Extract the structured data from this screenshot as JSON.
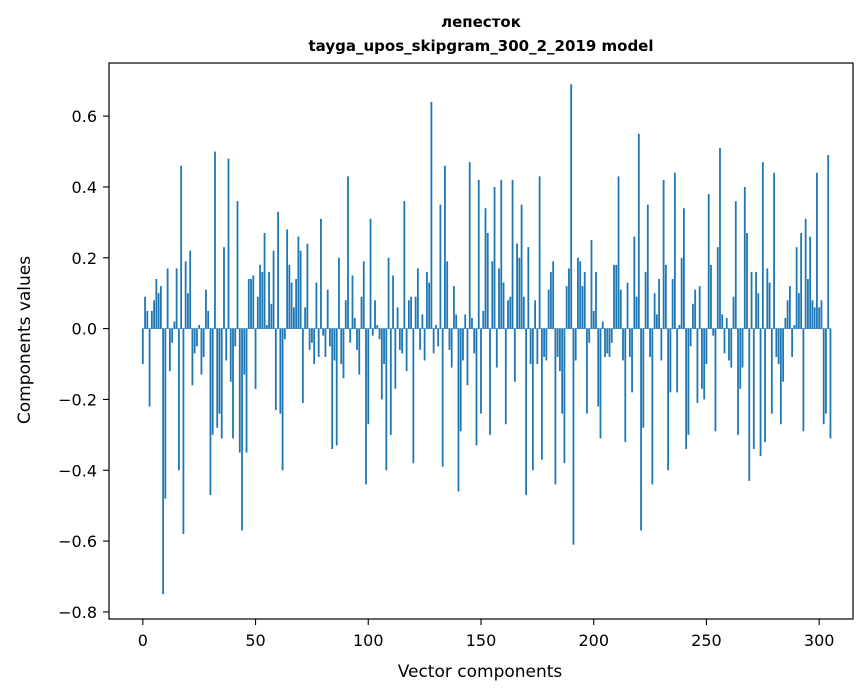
{
  "chart_data": {
    "type": "bar",
    "title": "лепесток",
    "subtitle": "tayga_upos_skipgram_300_2_2019 model",
    "xlabel": "Vector components",
    "ylabel": "Components values",
    "xlim": [
      -15,
      315
    ],
    "ylim": [
      -0.82,
      0.75
    ],
    "xticks": [
      0,
      50,
      100,
      150,
      200,
      250,
      300
    ],
    "xtick_labels": [
      "0",
      "50",
      "100",
      "150",
      "200",
      "250",
      "300"
    ],
    "yticks": [
      -0.8,
      -0.6,
      -0.4,
      -0.2,
      0.0,
      0.2,
      0.4,
      0.6
    ],
    "ytick_labels": [
      "−0.8",
      "−0.6",
      "−0.4",
      "−0.2",
      "0.0",
      "0.2",
      "0.4",
      "0.6"
    ],
    "grid": false,
    "bar_color": "#1f77b4",
    "series": [
      {
        "values": [
          -0.1,
          0.09,
          0.05,
          -0.22,
          0.05,
          0.08,
          0.14,
          0.1,
          0.12,
          -0.75,
          -0.48,
          0.17,
          -0.12,
          -0.04,
          0.02,
          0.17,
          -0.4,
          0.46,
          -0.58,
          0.19,
          0.1,
          0.22,
          -0.16,
          -0.07,
          -0.05,
          0.01,
          -0.13,
          -0.08,
          0.11,
          0.05,
          -0.47,
          -0.3,
          0.5,
          -0.28,
          -0.24,
          -0.31,
          0.23,
          -0.09,
          0.48,
          -0.15,
          -0.31,
          -0.05,
          0.36,
          -0.35,
          -0.57,
          -0.13,
          -0.35,
          0.14,
          0.14,
          0.15,
          -0.17,
          0.09,
          0.18,
          0.16,
          0.27,
          0.01,
          0.16,
          0.07,
          0.22,
          -0.23,
          0.33,
          -0.24,
          -0.4,
          -0.03,
          0.28,
          0.18,
          0.13,
          0.06,
          0.14,
          0.26,
          0.22,
          -0.21,
          0.06,
          0.24,
          -0.06,
          -0.04,
          -0.1,
          0.13,
          -0.08,
          0.31,
          -0.02,
          -0.08,
          0.11,
          -0.05,
          -0.34,
          -0.09,
          -0.33,
          0.2,
          -0.1,
          -0.14,
          0.08,
          0.43,
          -0.04,
          0.15,
          0.03,
          -0.06,
          -0.13,
          0.09,
          0.19,
          -0.44,
          -0.27,
          0.31,
          -0.02,
          0.08,
          0.01,
          -0.03,
          -0.2,
          -0.1,
          -0.4,
          0.2,
          -0.3,
          0.15,
          -0.17,
          0.06,
          -0.06,
          -0.07,
          0.36,
          -0.12,
          0.08,
          0.09,
          -0.38,
          0.09,
          0.17,
          -0.06,
          0.04,
          -0.09,
          0.16,
          0.13,
          0.64,
          -0.07,
          0.01,
          -0.05,
          0.35,
          -0.39,
          0.46,
          0.19,
          -0.06,
          -0.11,
          0.12,
          0.04,
          -0.46,
          -0.29,
          -0.09,
          0.04,
          -0.16,
          0.47,
          0.03,
          -0.07,
          -0.33,
          0.42,
          -0.24,
          0.05,
          0.34,
          0.27,
          -0.3,
          0.19,
          0.4,
          -0.11,
          0.17,
          0.42,
          0.13,
          -0.27,
          0.08,
          0.09,
          0.42,
          -0.15,
          0.24,
          0.2,
          0.35,
          0.09,
          -0.47,
          0.23,
          -0.1,
          -0.4,
          0.08,
          -0.1,
          0.43,
          -0.37,
          -0.08,
          -0.09,
          0.11,
          0.16,
          0.19,
          -0.44,
          -0.08,
          -0.12,
          -0.24,
          -0.38,
          0.12,
          0.17,
          0.69,
          -0.61,
          -0.09,
          0.2,
          0.19,
          0.12,
          0.16,
          -0.24,
          -0.04,
          0.25,
          0.05,
          0.16,
          -0.22,
          -0.31,
          0.02,
          -0.08,
          -0.07,
          -0.08,
          -0.04,
          0.18,
          0.18,
          0.43,
          0.11,
          -0.09,
          -0.32,
          0.13,
          -0.08,
          -0.18,
          0.26,
          0.09,
          0.55,
          -0.57,
          -0.28,
          0.16,
          0.35,
          -0.08,
          -0.44,
          0.1,
          0.04,
          0.14,
          -0.09,
          0.42,
          0.18,
          -0.4,
          -0.18,
          0.14,
          0.44,
          -0.18,
          0.01,
          0.2,
          0.34,
          -0.34,
          -0.3,
          -0.05,
          0.07,
          0.11,
          -0.21,
          0.12,
          -0.17,
          -0.2,
          -0.1,
          0.38,
          0.18,
          -0.02,
          -0.29,
          0.23,
          0.51,
          0.04,
          -0.07,
          0.03,
          -0.09,
          -0.11,
          0.09,
          0.36,
          -0.3,
          -0.17,
          -0.11,
          0.4,
          0.27,
          -0.43,
          0.16,
          -0.34,
          0.16,
          0.1,
          -0.36,
          0.47,
          -0.32,
          0.17,
          0.13,
          -0.24,
          0.44,
          -0.08,
          -0.1,
          -0.27,
          -0.15,
          0.03,
          0.08,
          0.12,
          -0.08,
          0.01,
          0.23,
          0.1,
          0.27,
          -0.29,
          0.31,
          0.14,
          0.26,
          0.08,
          0.06,
          0.44,
          0.06,
          0.08,
          -0.27,
          -0.24,
          0.49,
          -0.31
        ]
      }
    ]
  }
}
